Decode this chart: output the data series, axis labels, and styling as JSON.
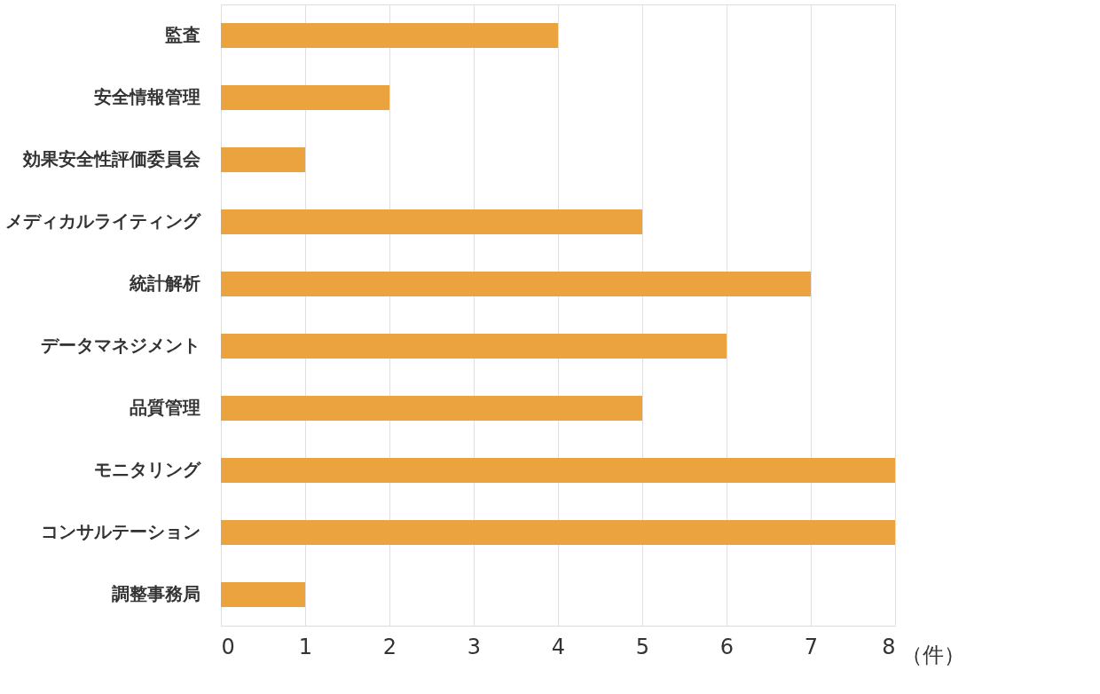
{
  "chart_data": {
    "type": "bar",
    "orientation": "horizontal",
    "xlabel": "（件）",
    "categories": [
      "監査",
      "安全情報管理",
      "効果安全性評価委員会",
      "メディカルライティング",
      "統計解析",
      "データマネジメント",
      "品質管理",
      "モニタリング",
      "コンサルテーション",
      "調整事務局"
    ],
    "values": [
      4,
      2,
      1,
      5,
      7,
      6,
      5,
      8,
      8,
      1
    ],
    "color": "#eba33f",
    "xlim": [
      0,
      8
    ],
    "xticks": [
      0,
      1,
      2,
      3,
      4,
      5,
      6,
      7,
      8
    ],
    "grid": "x"
  }
}
